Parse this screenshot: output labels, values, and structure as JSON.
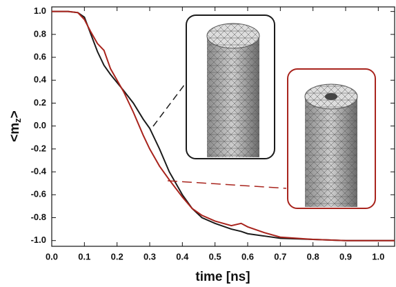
{
  "chart_data": {
    "type": "line",
    "xlabel": "time [ns]",
    "ylabel": [
      "<m",
      "z",
      ">"
    ],
    "x": [
      0,
      0.05,
      0.08,
      0.1,
      0.12,
      0.14,
      0.16,
      0.18,
      0.2,
      0.22,
      0.25,
      0.28,
      0.3,
      0.33,
      0.36,
      0.4,
      0.43,
      0.46,
      0.5,
      0.55,
      0.58,
      0.6,
      0.65,
      0.7,
      0.8,
      0.9,
      1.05
    ],
    "series": [
      {
        "color": "#1a1a1a",
        "values": [
          1,
          1,
          0.99,
          0.95,
          0.8,
          0.65,
          0.53,
          0.45,
          0.38,
          0.31,
          0.2,
          0.06,
          -0.02,
          -0.2,
          -0.4,
          -0.6,
          -0.72,
          -0.8,
          -0.85,
          -0.9,
          -0.92,
          -0.94,
          -0.96,
          -0.98,
          -0.99,
          -1,
          -1
        ]
      },
      {
        "color": "#a8231c",
        "values": [
          1,
          1,
          0.99,
          0.93,
          0.82,
          0.72,
          0.66,
          0.5,
          0.4,
          0.3,
          0.12,
          -0.08,
          -0.2,
          -0.35,
          -0.47,
          -0.62,
          -0.72,
          -0.78,
          -0.83,
          -0.87,
          -0.85,
          -0.88,
          -0.93,
          -0.97,
          -0.99,
          -1,
          -1
        ]
      }
    ],
    "xlim": [
      0,
      1.05
    ],
    "ylim": [
      -1.05,
      1.04
    ],
    "xticks": [
      {
        "value": 0,
        "label": "0.0"
      },
      0.1,
      0.2,
      0.3,
      0.4,
      0.5,
      0.6,
      0.7,
      0.8,
      0.9,
      {
        "value": 1,
        "label": "1.0"
      }
    ],
    "yticks": [
      {
        "value": 1,
        "label": "1.0"
      },
      0.8,
      0.6,
      0.4,
      0.2,
      {
        "value": 0,
        "label": "0.0"
      },
      -0.2,
      -0.4,
      -0.6,
      -0.8,
      {
        "value": -1,
        "label": "-1.0"
      }
    ],
    "grid": false
  }
}
